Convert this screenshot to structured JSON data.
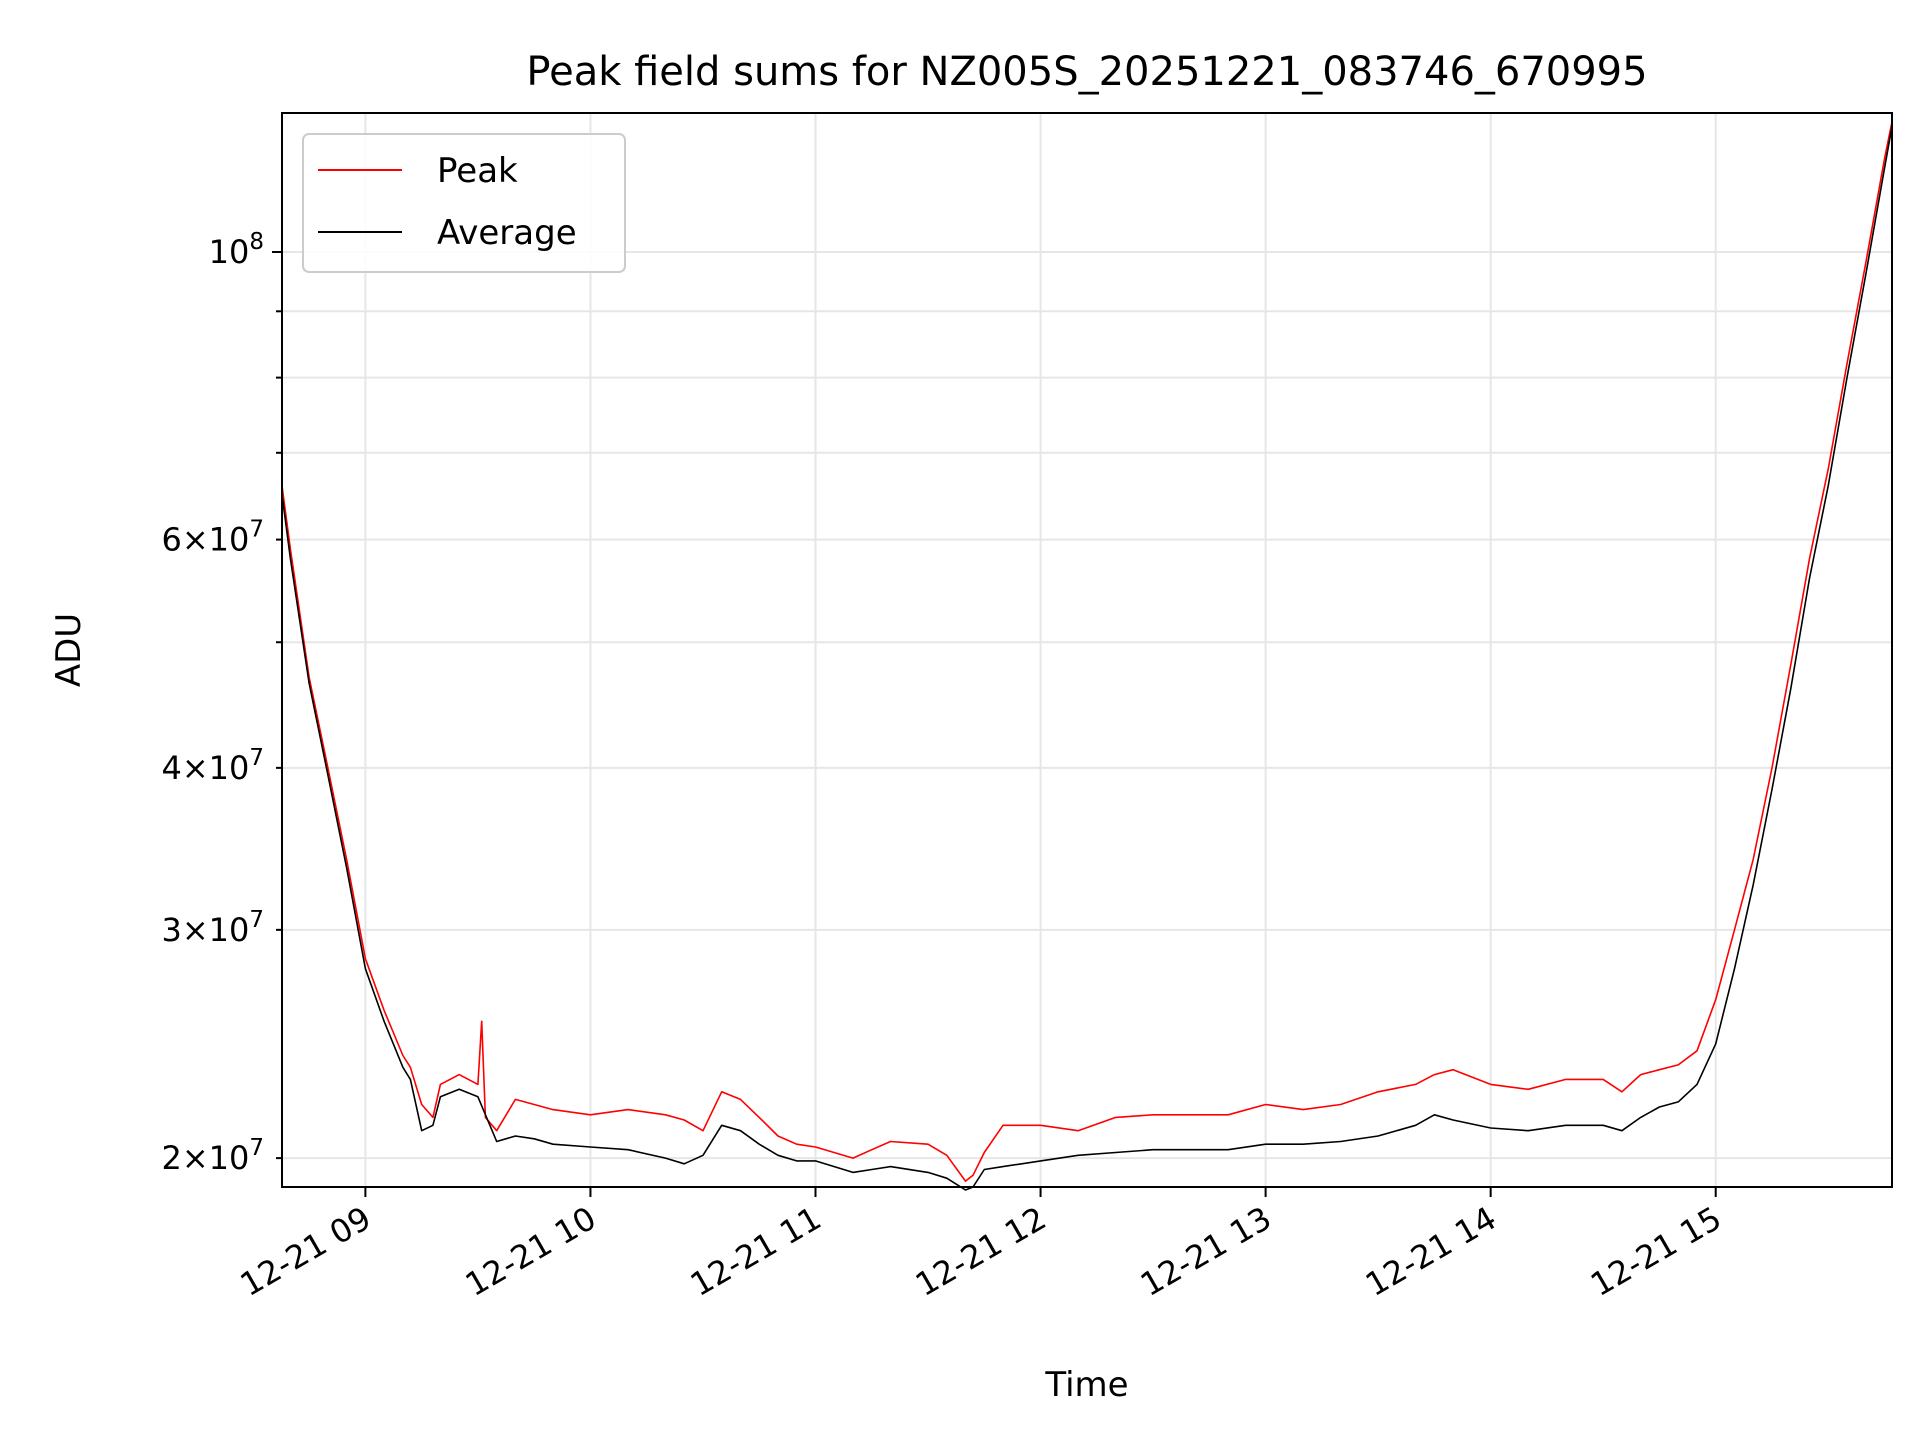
{
  "chart_data": {
    "type": "line",
    "title": "Peak field sums for NZ005S_20251221_083746_670995",
    "xlabel": "Time",
    "ylabel": "ADU",
    "yscale": "log",
    "xlim": [
      "2025-12-21 08:37:46",
      "2025-12-21 15:47:00"
    ],
    "ylim": [
      19000000,
      128000000
    ],
    "x_ticks": [
      {
        "value": "2025-12-21 09:00",
        "label": "12-21 09"
      },
      {
        "value": "2025-12-21 10:00",
        "label": "12-21 10"
      },
      {
        "value": "2025-12-21 11:00",
        "label": "12-21 11"
      },
      {
        "value": "2025-12-21 12:00",
        "label": "12-21 12"
      },
      {
        "value": "2025-12-21 13:00",
        "label": "12-21 13"
      },
      {
        "value": "2025-12-21 14:00",
        "label": "12-21 14"
      },
      {
        "value": "2025-12-21 15:00",
        "label": "12-21 15"
      }
    ],
    "y_major_ticks": [
      {
        "value": 100000000,
        "base": "10",
        "exp": "8"
      }
    ],
    "y_minor_ticks": [
      {
        "value": 20000000,
        "mant": "2",
        "base": "10",
        "exp": "7"
      },
      {
        "value": 30000000,
        "mant": "3",
        "base": "10",
        "exp": "7"
      },
      {
        "value": 40000000,
        "mant": "4",
        "base": "10",
        "exp": "7"
      },
      {
        "value": 50000000
      },
      {
        "value": 60000000,
        "mant": "6",
        "base": "10",
        "exp": "7"
      },
      {
        "value": 70000000
      },
      {
        "value": 80000000
      },
      {
        "value": 90000000
      }
    ],
    "grid": true,
    "legend_position": "top-left",
    "series": [
      {
        "name": "Peak",
        "color": "#ff0000",
        "x": [
          "2025-12-21 08:37:46",
          "2025-12-21 08:40",
          "2025-12-21 08:45",
          "2025-12-21 08:50",
          "2025-12-21 08:55",
          "2025-12-21 09:00",
          "2025-12-21 09:05",
          "2025-12-21 09:10",
          "2025-12-21 09:12",
          "2025-12-21 09:15",
          "2025-12-21 09:18",
          "2025-12-21 09:20",
          "2025-12-21 09:25",
          "2025-12-21 09:30",
          "2025-12-21 09:31",
          "2025-12-21 09:32",
          "2025-12-21 09:35",
          "2025-12-21 09:40",
          "2025-12-21 09:45",
          "2025-12-21 09:50",
          "2025-12-21 10:00",
          "2025-12-21 10:10",
          "2025-12-21 10:20",
          "2025-12-21 10:25",
          "2025-12-21 10:30",
          "2025-12-21 10:35",
          "2025-12-21 10:40",
          "2025-12-21 10:45",
          "2025-12-21 10:50",
          "2025-12-21 10:55",
          "2025-12-21 11:00",
          "2025-12-21 11:10",
          "2025-12-21 11:15",
          "2025-12-21 11:20",
          "2025-12-21 11:30",
          "2025-12-21 11:35",
          "2025-12-21 11:40",
          "2025-12-21 11:42",
          "2025-12-21 11:45",
          "2025-12-21 11:50",
          "2025-12-21 12:00",
          "2025-12-21 12:10",
          "2025-12-21 12:20",
          "2025-12-21 12:30",
          "2025-12-21 12:40",
          "2025-12-21 12:50",
          "2025-12-21 13:00",
          "2025-12-21 13:10",
          "2025-12-21 13:20",
          "2025-12-21 13:30",
          "2025-12-21 13:40",
          "2025-12-21 13:45",
          "2025-12-21 13:50",
          "2025-12-21 14:00",
          "2025-12-21 14:10",
          "2025-12-21 14:20",
          "2025-12-21 14:30",
          "2025-12-21 14:35",
          "2025-12-21 14:40",
          "2025-12-21 14:45",
          "2025-12-21 14:50",
          "2025-12-21 14:55",
          "2025-12-21 15:00",
          "2025-12-21 15:05",
          "2025-12-21 15:10",
          "2025-12-21 15:15",
          "2025-12-21 15:20",
          "2025-12-21 15:25",
          "2025-12-21 15:30",
          "2025-12-21 15:35",
          "2025-12-21 15:40",
          "2025-12-21 15:45",
          "2025-12-21 15:47"
        ],
        "y": [
          66000000,
          59000000,
          47000000,
          40000000,
          34000000,
          28500000,
          26000000,
          24000000,
          23500000,
          22000000,
          21500000,
          22800000,
          23200000,
          22800000,
          25500000,
          21500000,
          21000000,
          22200000,
          22000000,
          21800000,
          21600000,
          21800000,
          21600000,
          21400000,
          21000000,
          22500000,
          22200000,
          21500000,
          20800000,
          20500000,
          20400000,
          20000000,
          20300000,
          20600000,
          20500000,
          20100000,
          19200000,
          19400000,
          20200000,
          21200000,
          21200000,
          21000000,
          21500000,
          21600000,
          21600000,
          21600000,
          22000000,
          21800000,
          22000000,
          22500000,
          22800000,
          23200000,
          23400000,
          22800000,
          22600000,
          23000000,
          23000000,
          22500000,
          23200000,
          23400000,
          23600000,
          24200000,
          26500000,
          30000000,
          34000000,
          40000000,
          48000000,
          58000000,
          68000000,
          82000000,
          98000000,
          118000000,
          126000000
        ]
      },
      {
        "name": "Average",
        "color": "#000000",
        "x": [
          "2025-12-21 08:37:46",
          "2025-12-21 08:40",
          "2025-12-21 08:45",
          "2025-12-21 08:50",
          "2025-12-21 08:55",
          "2025-12-21 09:00",
          "2025-12-21 09:05",
          "2025-12-21 09:10",
          "2025-12-21 09:12",
          "2025-12-21 09:15",
          "2025-12-21 09:18",
          "2025-12-21 09:20",
          "2025-12-21 09:25",
          "2025-12-21 09:30",
          "2025-12-21 09:35",
          "2025-12-21 09:40",
          "2025-12-21 09:45",
          "2025-12-21 09:50",
          "2025-12-21 10:00",
          "2025-12-21 10:10",
          "2025-12-21 10:20",
          "2025-12-21 10:25",
          "2025-12-21 10:30",
          "2025-12-21 10:35",
          "2025-12-21 10:40",
          "2025-12-21 10:45",
          "2025-12-21 10:50",
          "2025-12-21 10:55",
          "2025-12-21 11:00",
          "2025-12-21 11:10",
          "2025-12-21 11:15",
          "2025-12-21 11:20",
          "2025-12-21 11:30",
          "2025-12-21 11:35",
          "2025-12-21 11:40",
          "2025-12-21 11:42",
          "2025-12-21 11:45",
          "2025-12-21 11:50",
          "2025-12-21 12:00",
          "2025-12-21 12:10",
          "2025-12-21 12:20",
          "2025-12-21 12:30",
          "2025-12-21 12:40",
          "2025-12-21 12:50",
          "2025-12-21 13:00",
          "2025-12-21 13:10",
          "2025-12-21 13:20",
          "2025-12-21 13:30",
          "2025-12-21 13:40",
          "2025-12-21 13:45",
          "2025-12-21 13:50",
          "2025-12-21 14:00",
          "2025-12-21 14:10",
          "2025-12-21 14:20",
          "2025-12-21 14:30",
          "2025-12-21 14:35",
          "2025-12-21 14:40",
          "2025-12-21 14:45",
          "2025-12-21 14:50",
          "2025-12-21 14:55",
          "2025-12-21 15:00",
          "2025-12-21 15:05",
          "2025-12-21 15:10",
          "2025-12-21 15:15",
          "2025-12-21 15:20",
          "2025-12-21 15:25",
          "2025-12-21 15:30",
          "2025-12-21 15:35",
          "2025-12-21 15:40",
          "2025-12-21 15:45",
          "2025-12-21 15:47"
        ],
        "y": [
          65000000,
          58000000,
          46500000,
          39500000,
          33500000,
          28000000,
          25500000,
          23500000,
          23000000,
          21000000,
          21200000,
          22300000,
          22600000,
          22300000,
          20600000,
          20800000,
          20700000,
          20500000,
          20400000,
          20300000,
          20000000,
          19800000,
          20100000,
          21200000,
          21000000,
          20500000,
          20100000,
          19900000,
          19900000,
          19500000,
          19600000,
          19700000,
          19500000,
          19300000,
          18900000,
          19000000,
          19600000,
          19700000,
          19900000,
          20100000,
          20200000,
          20300000,
          20300000,
          20300000,
          20500000,
          20500000,
          20600000,
          20800000,
          21200000,
          21600000,
          21400000,
          21100000,
          21000000,
          21200000,
          21200000,
          21000000,
          21500000,
          21900000,
          22100000,
          22800000,
          24500000,
          28000000,
          32500000,
          38500000,
          46000000,
          56000000,
          66000000,
          80000000,
          96000000,
          116000000,
          125000000
        ]
      }
    ]
  }
}
